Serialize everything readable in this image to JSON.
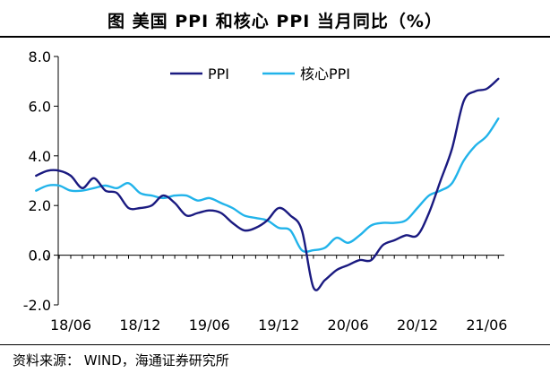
{
  "title": "图  美国 PPI 和核心 PPI 当月同比（%）",
  "source": "资料来源：  WIND，海通证券研究所",
  "colors": {
    "ppi": "#1a1a80",
    "core": "#21b3ea",
    "axis": "#000000"
  },
  "chart_data": {
    "type": "line",
    "title": "美国 PPI 和核心 PPI 当月同比（%）",
    "xlabel": "",
    "ylabel": "",
    "ylim": [
      -2.0,
      8.0
    ],
    "yticks": [
      "-2.0",
      "0.0",
      "2.0",
      "4.0",
      "6.0",
      "8.0"
    ],
    "ytick_values": [
      -2,
      0,
      2,
      4,
      6,
      8
    ],
    "xtick_labels": [
      "18/06",
      "18/12",
      "19/06",
      "19/12",
      "20/06",
      "20/12",
      "21/06"
    ],
    "xtick_months": [
      "2018-06",
      "2018-12",
      "2019-06",
      "2019-12",
      "2020-06",
      "2020-12",
      "2021-06"
    ],
    "legend": [
      "PPI",
      "核心PPI"
    ],
    "legend_position": "top-center",
    "months": [
      "2018-03",
      "2018-04",
      "2018-05",
      "2018-06",
      "2018-07",
      "2018-08",
      "2018-09",
      "2018-10",
      "2018-11",
      "2018-12",
      "2019-01",
      "2019-02",
      "2019-03",
      "2019-04",
      "2019-05",
      "2019-06",
      "2019-07",
      "2019-08",
      "2019-09",
      "2019-10",
      "2019-11",
      "2019-12",
      "2020-01",
      "2020-02",
      "2020-03",
      "2020-04",
      "2020-05",
      "2020-06",
      "2020-07",
      "2020-08",
      "2020-09",
      "2020-10",
      "2020-11",
      "2020-12",
      "2021-01",
      "2021-02",
      "2021-03",
      "2021-04",
      "2021-05",
      "2021-06",
      "2021-07"
    ],
    "series": [
      {
        "name": "PPI",
        "values": [
          3.2,
          3.4,
          3.4,
          3.2,
          2.7,
          3.1,
          2.6,
          2.5,
          1.9,
          1.9,
          2.0,
          2.4,
          2.1,
          1.6,
          1.7,
          1.8,
          1.7,
          1.3,
          1.0,
          1.1,
          1.4,
          1.9,
          1.6,
          1.0,
          -1.3,
          -1.0,
          -0.6,
          -0.4,
          -0.2,
          -0.2,
          0.4,
          0.6,
          0.8,
          0.8,
          1.7,
          3.0,
          4.3,
          6.2,
          6.6,
          6.7,
          7.1
        ]
      },
      {
        "name": "核心PPI",
        "values": [
          2.6,
          2.8,
          2.8,
          2.6,
          2.6,
          2.7,
          2.8,
          2.7,
          2.9,
          2.5,
          2.4,
          2.3,
          2.4,
          2.4,
          2.2,
          2.3,
          2.1,
          1.9,
          1.6,
          1.5,
          1.4,
          1.1,
          1.0,
          0.2,
          0.2,
          0.3,
          0.7,
          0.5,
          0.8,
          1.2,
          1.3,
          1.3,
          1.4,
          1.9,
          2.4,
          2.6,
          2.9,
          3.8,
          4.4,
          4.8,
          5.5
        ]
      }
    ]
  }
}
